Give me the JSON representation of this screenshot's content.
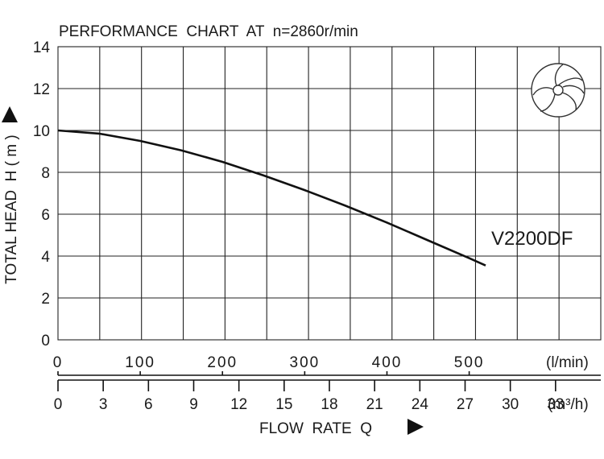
{
  "chart_data": {
    "type": "line",
    "title": "PERFORMANCE  CHART  AT  n=2860r/min",
    "ylabel": "TOTAL HEAD  H ( m )",
    "xlabel": "FLOW  RATE  Q",
    "ylim": [
      0,
      14
    ],
    "y_ticks": [
      "0",
      "2",
      "4",
      "6",
      "8",
      "10",
      "12",
      "14"
    ],
    "x_axis_lmin": {
      "unit": "(l/min)",
      "xlim": [
        0,
        660
      ],
      "ticks": [
        "0",
        "100",
        "200",
        "300",
        "400",
        "500"
      ]
    },
    "x_axis_m3h": {
      "unit": "(m³/h)",
      "ticks": [
        "0",
        "3",
        "6",
        "9",
        "12",
        "15",
        "18",
        "21",
        "24",
        "27",
        "30",
        "33"
      ]
    },
    "grid": true,
    "series": [
      {
        "name": "V2200DF",
        "x": [
          0,
          50,
          100,
          150,
          200,
          250,
          300,
          350,
          400,
          450,
          500,
          520
        ],
        "y": [
          10.0,
          9.85,
          9.5,
          9.05,
          8.5,
          7.85,
          7.15,
          6.4,
          5.6,
          4.75,
          3.9,
          3.55
        ]
      }
    ],
    "annotations": [
      "V2200DF"
    ]
  },
  "icons": {
    "impeller": "impeller-icon",
    "arrow_y": "arrow-up-icon",
    "arrow_x": "arrow-right-icon"
  }
}
